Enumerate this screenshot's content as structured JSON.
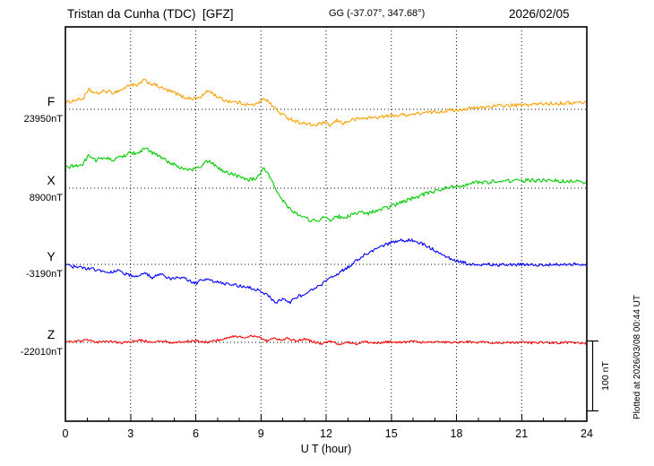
{
  "header": {
    "station": "Tristan da Cunha (TDC)  [GFZ]",
    "coords": "GG (-37.07°, 347.68°)",
    "date": "2026/02/05"
  },
  "footer_note": "Plotted at 2026/03/08 00:44 UT",
  "scale_bar": {
    "label": "100 nT",
    "span_nT": 100
  },
  "chart_data": {
    "type": "line",
    "title": "Tristan da Cunha (TDC) [GFZ] magnetogram 2026/02/05",
    "xlabel": "U T (hour)",
    "ylabel": "",
    "x_range": [
      0,
      24
    ],
    "x_ticks": [
      0,
      3,
      6,
      9,
      12,
      15,
      18,
      21,
      24
    ],
    "grid": "dotted vertical every 3h, dotted horizontal baseline per component",
    "legend_position": "left labels per trace",
    "series": [
      {
        "name": "F",
        "color": "#ffa000",
        "baseline_label": "23950nT",
        "baseline_nT": 23950,
        "noise_nT": 2.5,
        "points_dnT": [
          [
            0,
            9
          ],
          [
            0.4,
            13
          ],
          [
            0.8,
            15
          ],
          [
            1.1,
            28
          ],
          [
            1.4,
            22
          ],
          [
            1.8,
            26
          ],
          [
            2.2,
            24
          ],
          [
            2.6,
            28
          ],
          [
            3,
            36
          ],
          [
            3.3,
            33
          ],
          [
            3.6,
            42
          ],
          [
            3.9,
            37
          ],
          [
            4.2,
            34
          ],
          [
            4.6,
            28
          ],
          [
            5,
            24
          ],
          [
            5.4,
            18
          ],
          [
            5.8,
            15
          ],
          [
            6.2,
            17
          ],
          [
            6.6,
            27
          ],
          [
            6.9,
            20
          ],
          [
            7.3,
            13
          ],
          [
            7.7,
            11
          ],
          [
            8.1,
            9
          ],
          [
            8.5,
            6
          ],
          [
            8.9,
            8
          ],
          [
            9.1,
            17
          ],
          [
            9.3,
            12
          ],
          [
            9.6,
            3
          ],
          [
            9.9,
            -6
          ],
          [
            10.3,
            -13
          ],
          [
            10.7,
            -18
          ],
          [
            11.1,
            -21
          ],
          [
            11.5,
            -23
          ],
          [
            11.9,
            -19
          ],
          [
            12.2,
            -23
          ],
          [
            12.5,
            -16
          ],
          [
            12.8,
            -20
          ],
          [
            13.2,
            -15
          ],
          [
            13.6,
            -13
          ],
          [
            14,
            -12
          ],
          [
            14.5,
            -11
          ],
          [
            15,
            -9
          ],
          [
            15.5,
            -8
          ],
          [
            16,
            -7
          ],
          [
            16.5,
            -5
          ],
          [
            17,
            -4
          ],
          [
            17.5,
            -2
          ],
          [
            18,
            -1
          ],
          [
            18.5,
            1
          ],
          [
            19,
            2
          ],
          [
            19.5,
            4
          ],
          [
            20,
            5
          ],
          [
            21,
            6
          ],
          [
            22,
            8
          ],
          [
            23,
            9
          ],
          [
            24,
            10
          ]
        ]
      },
      {
        "name": "X",
        "color": "#00cc00",
        "baseline_label": "8900nT",
        "baseline_nT": 8900,
        "noise_nT": 2.8,
        "points_dnT": [
          [
            0,
            29
          ],
          [
            0.4,
            32
          ],
          [
            0.8,
            34
          ],
          [
            1.1,
            48
          ],
          [
            1.4,
            40
          ],
          [
            1.8,
            44
          ],
          [
            2.2,
            40
          ],
          [
            2.6,
            45
          ],
          [
            3,
            52
          ],
          [
            3.3,
            48
          ],
          [
            3.6,
            58
          ],
          [
            3.9,
            52
          ],
          [
            4.2,
            48
          ],
          [
            4.6,
            40
          ],
          [
            5,
            34
          ],
          [
            5.4,
            28
          ],
          [
            5.8,
            26
          ],
          [
            6.2,
            30
          ],
          [
            6.6,
            40
          ],
          [
            6.9,
            32
          ],
          [
            7.3,
            24
          ],
          [
            7.7,
            20
          ],
          [
            8.1,
            16
          ],
          [
            8.5,
            12
          ],
          [
            8.9,
            16
          ],
          [
            9.1,
            28
          ],
          [
            9.3,
            22
          ],
          [
            9.6,
            6
          ],
          [
            9.9,
            -14
          ],
          [
            10.3,
            -28
          ],
          [
            10.7,
            -38
          ],
          [
            11.1,
            -44
          ],
          [
            11.5,
            -47
          ],
          [
            11.9,
            -42
          ],
          [
            12.2,
            -46
          ],
          [
            12.5,
            -40
          ],
          [
            12.8,
            -43
          ],
          [
            13.2,
            -38
          ],
          [
            13.6,
            -35
          ],
          [
            14,
            -36
          ],
          [
            14.5,
            -31
          ],
          [
            15,
            -26
          ],
          [
            15.5,
            -20
          ],
          [
            16,
            -14
          ],
          [
            16.5,
            -9
          ],
          [
            17,
            -4
          ],
          [
            17.5,
            0
          ],
          [
            18,
            3
          ],
          [
            18.5,
            6
          ],
          [
            19,
            8
          ],
          [
            19.5,
            9
          ],
          [
            20,
            10
          ],
          [
            21,
            11
          ],
          [
            22,
            11
          ],
          [
            23,
            10
          ],
          [
            24,
            9
          ]
        ]
      },
      {
        "name": "Y",
        "color": "#0000ff",
        "baseline_label": "-3190nT",
        "baseline_nT": -3190,
        "noise_nT": 2.4,
        "points_dnT": [
          [
            0,
            -1
          ],
          [
            0.5,
            -4
          ],
          [
            1,
            -6
          ],
          [
            1.5,
            -8
          ],
          [
            2,
            -12
          ],
          [
            2.4,
            -8
          ],
          [
            2.8,
            -14
          ],
          [
            3.2,
            -17
          ],
          [
            3.6,
            -12
          ],
          [
            4,
            -19
          ],
          [
            4.4,
            -15
          ],
          [
            4.8,
            -21
          ],
          [
            5.2,
            -17
          ],
          [
            5.6,
            -22
          ],
          [
            6,
            -27
          ],
          [
            6.4,
            -21
          ],
          [
            6.8,
            -24
          ],
          [
            7.2,
            -27
          ],
          [
            7.6,
            -29
          ],
          [
            8,
            -31
          ],
          [
            8.4,
            -33
          ],
          [
            8.8,
            -36
          ],
          [
            9.1,
            -40
          ],
          [
            9.4,
            -47
          ],
          [
            9.7,
            -56
          ],
          [
            10,
            -48
          ],
          [
            10.3,
            -55
          ],
          [
            10.6,
            -47
          ],
          [
            11,
            -43
          ],
          [
            11.4,
            -36
          ],
          [
            11.8,
            -28
          ],
          [
            12.2,
            -20
          ],
          [
            12.6,
            -12
          ],
          [
            13,
            -4
          ],
          [
            13.4,
            5
          ],
          [
            13.8,
            14
          ],
          [
            14.2,
            21
          ],
          [
            14.6,
            27
          ],
          [
            15,
            31
          ],
          [
            15.4,
            34
          ],
          [
            15.8,
            35
          ],
          [
            16.2,
            32
          ],
          [
            16.6,
            27
          ],
          [
            17,
            20
          ],
          [
            17.4,
            13
          ],
          [
            17.8,
            7
          ],
          [
            18.2,
            3
          ],
          [
            18.6,
            1
          ],
          [
            19,
            0
          ],
          [
            20,
            -1
          ],
          [
            21,
            0
          ],
          [
            22,
            -1
          ],
          [
            23,
            0
          ],
          [
            24,
            0
          ]
        ]
      },
      {
        "name": "Z",
        "color": "#ff0000",
        "baseline_label": "-22010nT",
        "baseline_nT": -22010,
        "noise_nT": 1.6,
        "points_dnT": [
          [
            0,
            2
          ],
          [
            0.5,
            1
          ],
          [
            1,
            3
          ],
          [
            1.5,
            0
          ],
          [
            2,
            2
          ],
          [
            2.5,
            -1
          ],
          [
            3,
            1
          ],
          [
            3.5,
            3
          ],
          [
            4,
            0
          ],
          [
            4.5,
            2
          ],
          [
            5,
            -1
          ],
          [
            5.5,
            1
          ],
          [
            6,
            2
          ],
          [
            6.5,
            0
          ],
          [
            7,
            3
          ],
          [
            7.4,
            6
          ],
          [
            7.8,
            9
          ],
          [
            8.2,
            7
          ],
          [
            8.6,
            9
          ],
          [
            9,
            6
          ],
          [
            9.3,
            2
          ],
          [
            9.6,
            6
          ],
          [
            9.9,
            3
          ],
          [
            10.2,
            6
          ],
          [
            10.6,
            2
          ],
          [
            11,
            5
          ],
          [
            11.4,
            1
          ],
          [
            11.8,
            -2
          ],
          [
            12.2,
            2
          ],
          [
            12.6,
            -3
          ],
          [
            13,
            0
          ],
          [
            13.4,
            -2
          ],
          [
            13.8,
            1
          ],
          [
            14.2,
            -1
          ],
          [
            14.6,
            0
          ],
          [
            15,
            1
          ],
          [
            15.5,
            0
          ],
          [
            16,
            1
          ],
          [
            16.5,
            0
          ],
          [
            17,
            1
          ],
          [
            17.5,
            0
          ],
          [
            18,
            0
          ],
          [
            18.5,
            1
          ],
          [
            19,
            0
          ],
          [
            19.5,
            0
          ],
          [
            20,
            -1
          ],
          [
            20.5,
            0
          ],
          [
            21,
            0
          ],
          [
            21.5,
            -1
          ],
          [
            22,
            0
          ],
          [
            22.5,
            -1
          ],
          [
            23,
            0
          ],
          [
            23.5,
            -1
          ],
          [
            24,
            -1
          ]
        ]
      }
    ]
  }
}
